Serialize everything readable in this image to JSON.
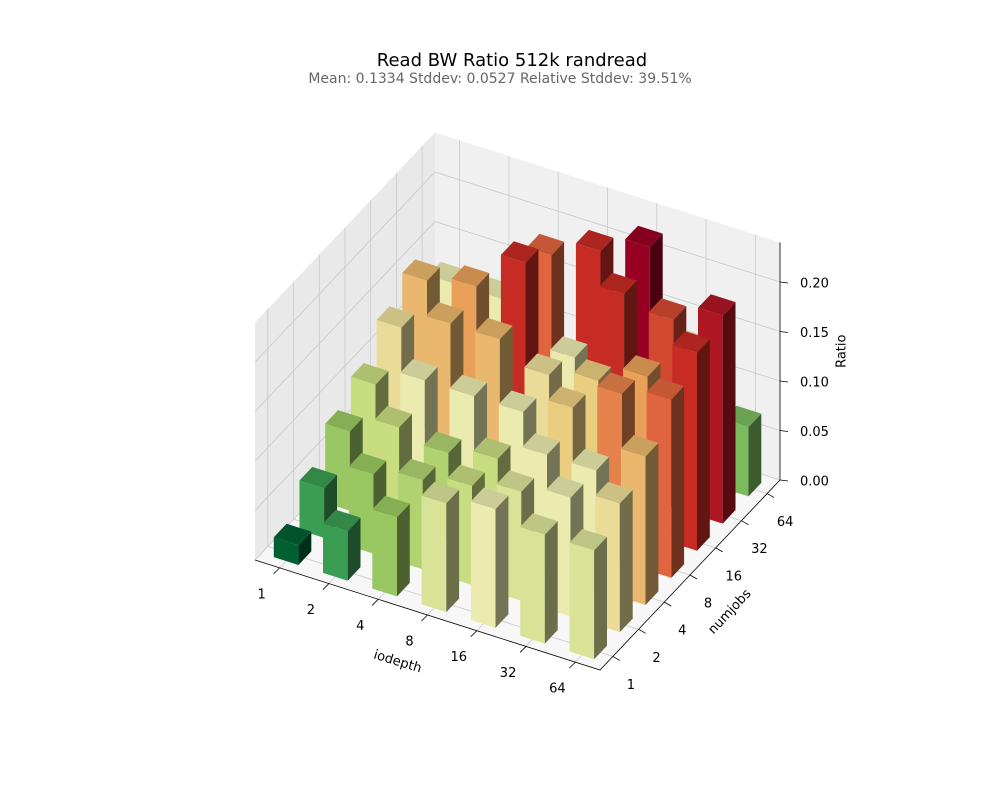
{
  "chart_data": {
    "type": "bar3d",
    "title": "Read BW Ratio 512k randread",
    "subtitle": "Mean: 0.1334   Stddev: 0.0527   Relative Stddev: 39.51%",
    "xlabel": "iodepth",
    "ylabel": "numjobs",
    "zlabel": "Ratio",
    "x": [
      "1",
      "2",
      "4",
      "8",
      "16",
      "32",
      "64"
    ],
    "y": [
      "1",
      "2",
      "4",
      "8",
      "16",
      "32",
      "64"
    ],
    "values": [
      [
        0.02,
        0.05,
        0.08,
        0.11,
        0.12,
        0.11,
        0.11
      ],
      [
        0.05,
        0.08,
        0.09,
        0.1,
        0.11,
        0.12,
        0.13
      ],
      [
        0.08,
        0.1,
        0.09,
        0.1,
        0.12,
        0.12,
        0.15
      ],
      [
        0.1,
        0.12,
        0.12,
        0.12,
        0.14,
        0.17,
        0.18
      ],
      [
        0.13,
        0.15,
        0.15,
        0.13,
        0.14,
        0.16,
        0.2
      ],
      [
        0.15,
        0.16,
        0.2,
        0.12,
        0.2,
        0.19,
        0.21
      ],
      [
        0.12,
        0.12,
        0.18,
        0.2,
        0.22,
        0.13,
        0.07
      ]
    ],
    "zlim": [
      0,
      0.24
    ],
    "zticks": [
      {
        "value": 0,
        "label": "0.00"
      },
      {
        "value": 0.05,
        "label": "0.05"
      },
      {
        "value": 0.1,
        "label": "0.10"
      },
      {
        "value": 0.15,
        "label": "0.15"
      },
      {
        "value": 0.2,
        "label": "0.20"
      }
    ],
    "colormap": "RdYlGn_r",
    "grid": true
  }
}
